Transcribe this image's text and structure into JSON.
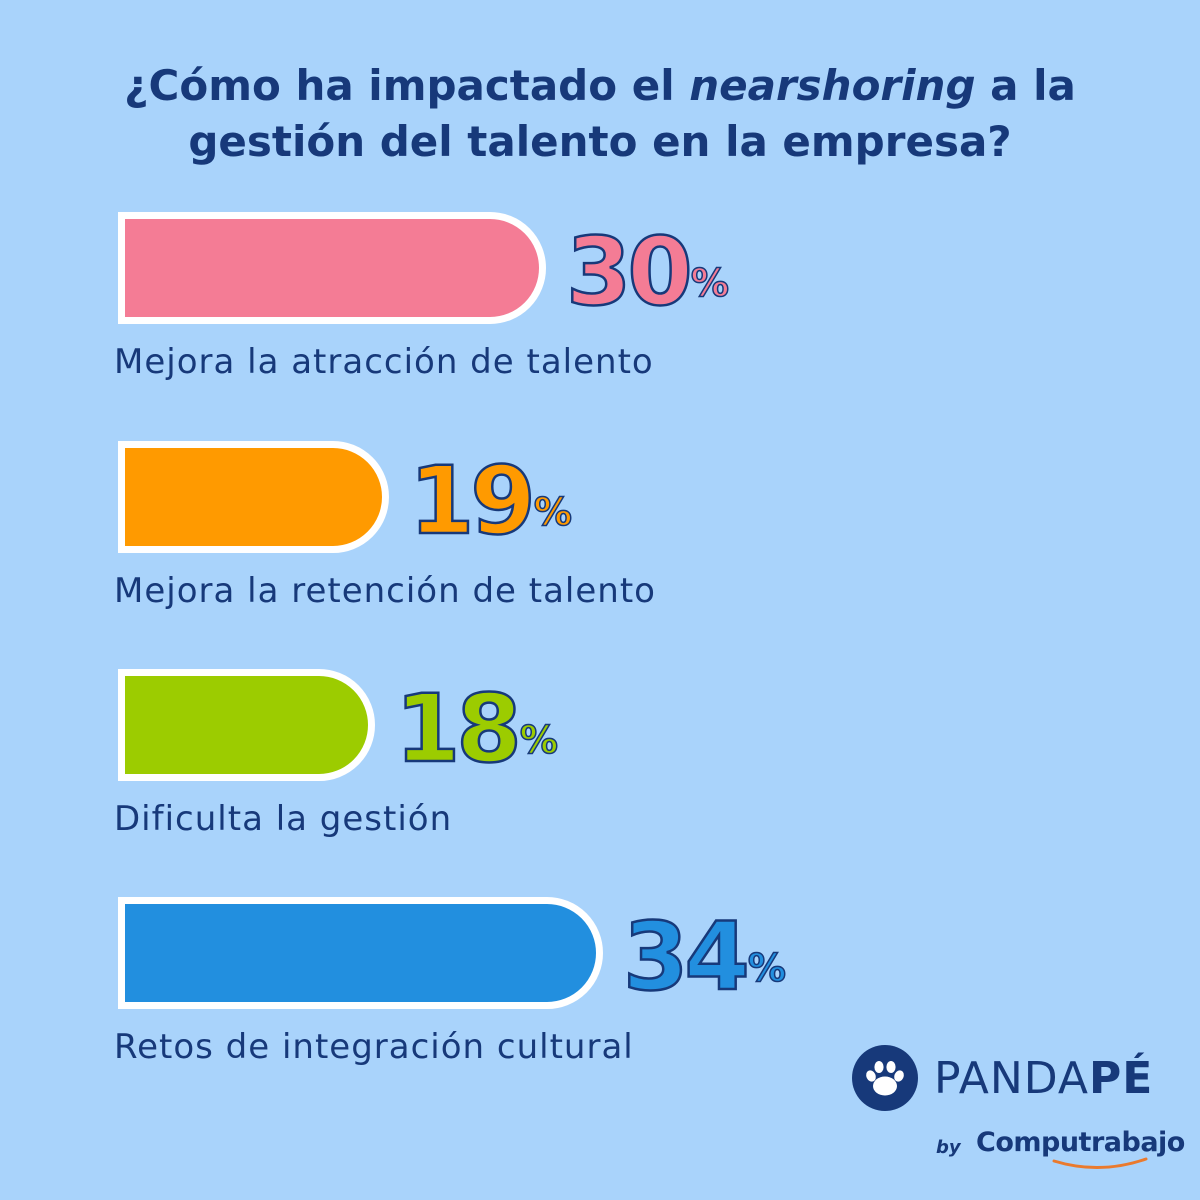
{
  "title": {
    "line1_pre": "¿Cómo ha impactado el ",
    "line1_em": "nearshoring",
    "line1_post": " a la",
    "line2": "gestión del talento en la empresa?"
  },
  "chart_data": {
    "type": "bar",
    "orientation": "horizontal",
    "title": "¿Cómo ha impactado el nearshoring a la gestión del talento en la empresa?",
    "categories": [
      "Mejora la atracción de talento",
      "Mejora la retención de talento",
      "Dificulta la gestión",
      "Retos de integración cultural"
    ],
    "values": [
      30,
      19,
      18,
      34
    ],
    "unit": "%",
    "colors": [
      "#f47c95",
      "#ff9a00",
      "#9ccc00",
      "#228fdf"
    ]
  },
  "bars": [
    {
      "value": "30",
      "symbol": "%",
      "label": "Mejora la atracción de talento"
    },
    {
      "value": "19",
      "symbol": "%",
      "label": "Mejora la retención de talento"
    },
    {
      "value": "18",
      "symbol": "%",
      "label": "Dificulta la gestión"
    },
    {
      "value": "34",
      "symbol": "%",
      "label": "Retos de integración cultural"
    }
  ],
  "logo": {
    "brand_regular": "PANDA",
    "brand_bold": "PÉ",
    "by": "by",
    "partner": "Computrabajo",
    "color": "#17397a",
    "accent": "#ea7a2e",
    "icon": "paw-icon"
  }
}
